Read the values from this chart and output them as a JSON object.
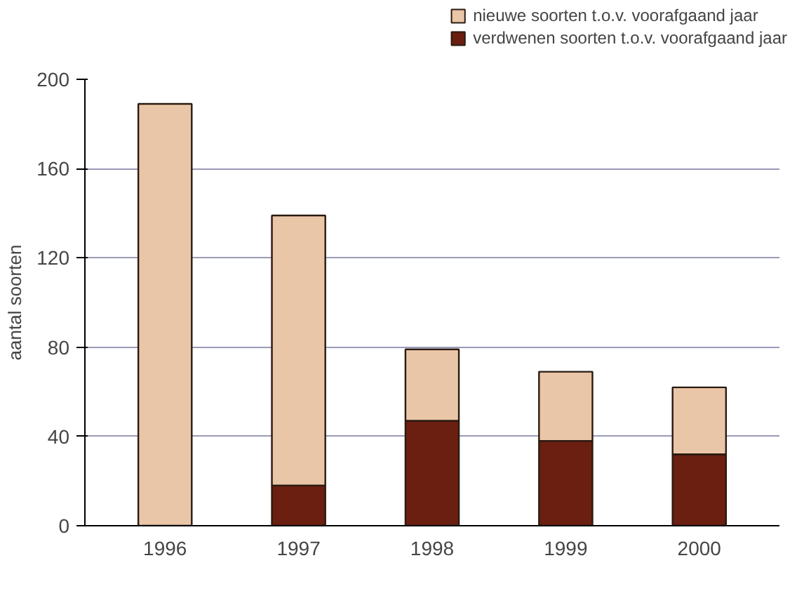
{
  "chart_data": {
    "type": "bar",
    "stacked": true,
    "ylabel": "aantal soorten",
    "categories": [
      "1996",
      "1997",
      "1998",
      "1999",
      "2000"
    ],
    "series": [
      {
        "name": "verdwenen soorten t.o.v. voorafgaand jaar",
        "color": "#6b1f10",
        "values": [
          0,
          18,
          47,
          38,
          32
        ]
      },
      {
        "name": "nieuwe soorten t.o.v. voorafgaand jaar",
        "color": "#eac6a8",
        "values": [
          189,
          121,
          32,
          31,
          30
        ]
      }
    ],
    "ylim": [
      0,
      200
    ],
    "yticks": [
      0,
      40,
      80,
      120,
      160,
      200
    ],
    "grid": "y",
    "legend": "top right"
  }
}
